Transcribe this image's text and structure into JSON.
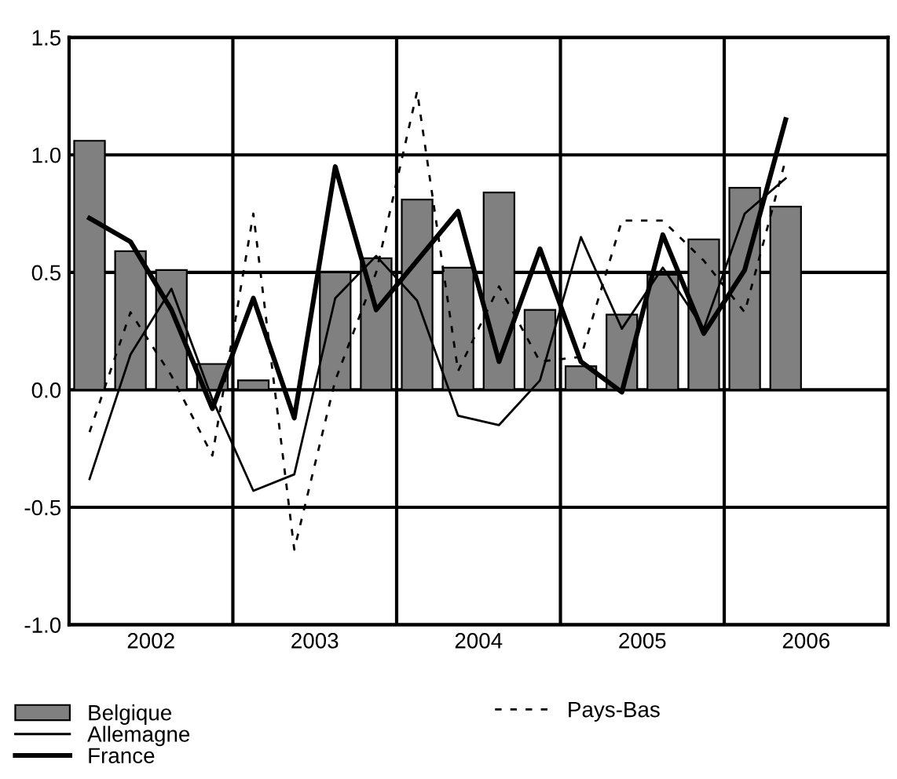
{
  "chart_data": {
    "type": "bar",
    "x": [
      2002.125,
      2002.375,
      2002.625,
      2002.875,
      2003.125,
      2003.375,
      2003.625,
      2003.875,
      2004.125,
      2004.375,
      2004.625,
      2004.875,
      2005.125,
      2005.375,
      2005.625,
      2005.875,
      2006.125,
      2006.375
    ],
    "series": [
      {
        "name": "Belgique",
        "color": "#808080",
        "values": [
          1.06,
          0.59,
          0.51,
          0.11,
          0.04,
          null,
          0.5,
          0.56,
          0.81,
          0.52,
          0.84,
          0.34,
          0.1,
          0.32,
          0.49,
          0.64,
          0.86,
          0.78
        ]
      },
      {
        "name": "Allemagne",
        "type": "line",
        "color": "#000000",
        "line_style": "solid",
        "values": [
          -0.38,
          0.15,
          0.43,
          -0.04,
          -0.43,
          -0.36,
          0.39,
          0.57,
          0.38,
          -0.11,
          -0.15,
          0.04,
          0.65,
          0.26,
          0.52,
          0.26,
          0.75,
          0.9
        ]
      },
      {
        "name": "France",
        "type": "line",
        "color": "#000000",
        "line_style": "solid",
        "values": [
          0.73,
          0.63,
          0.34,
          -0.08,
          0.39,
          -0.12,
          0.95,
          0.34,
          0.55,
          0.76,
          0.12,
          0.6,
          0.12,
          -0.01,
          0.66,
          0.24,
          0.51,
          1.15
        ]
      },
      {
        "name": "Pays-Bas",
        "type": "line",
        "color": "#000000",
        "line_style": "dashed",
        "values": [
          -0.18,
          0.33,
          0.06,
          -0.28,
          0.75,
          -0.68,
          0.04,
          0.5,
          1.27,
          0.08,
          0.44,
          0.12,
          0.14,
          0.72,
          0.72,
          0.55,
          0.33,
          0.98
        ]
      }
    ],
    "xlim": [
      2002,
      2007
    ],
    "xticks": [
      {
        "value": 2002.5,
        "label": "2002"
      },
      {
        "value": 2003.5,
        "label": "2003"
      },
      {
        "value": 2004.5,
        "label": "2004"
      },
      {
        "value": 2005.5,
        "label": "2005"
      },
      {
        "value": 2006.5,
        "label": "2006"
      }
    ],
    "ylim": [
      -1.0,
      1.5
    ],
    "yticks": [
      {
        "value": -1.0,
        "label": "-1.0"
      },
      {
        "value": -0.5,
        "label": "-0.5"
      },
      {
        "value": 0.0,
        "label": "0.0"
      },
      {
        "value": 0.5,
        "label": "0.5"
      },
      {
        "value": 1.0,
        "label": "1.0"
      },
      {
        "value": 1.5,
        "label": "1.5"
      }
    ],
    "ref_lines": [
      {
        "axis": "x",
        "value": 2003,
        "label": null
      },
      {
        "axis": "x",
        "value": 2004,
        "label": null
      },
      {
        "axis": "x",
        "value": 2005,
        "label": null
      },
      {
        "axis": "x",
        "value": 2006,
        "label": null
      }
    ],
    "grid": "y",
    "legend": "bottom"
  }
}
